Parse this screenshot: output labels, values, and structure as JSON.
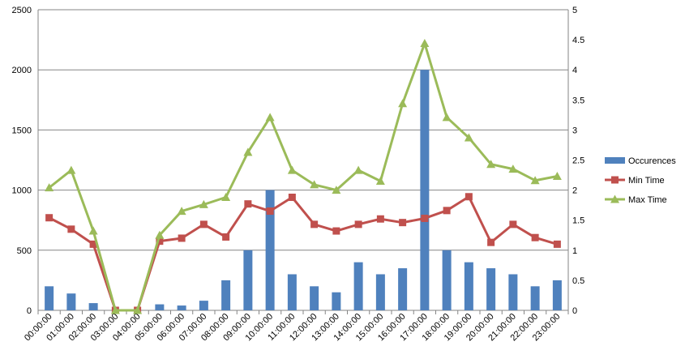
{
  "chart_data": {
    "type": "bar+line",
    "categories": [
      "00:00:00",
      "01:00:00",
      "02:00:00",
      "03:00:00",
      "04:00:00",
      "05:00:00",
      "06:00:00",
      "07:00:00",
      "08:00:00",
      "09:00:00",
      "10:00:00",
      "11:00:00",
      "12:00:00",
      "13:00:00",
      "14:00:00",
      "15:00:00",
      "16:00:00",
      "17:00:00",
      "18:00:00",
      "19:00:00",
      "20:00:00",
      "21:00:00",
      "22:00:00",
      "23:00:00"
    ],
    "y_left": {
      "min": 0,
      "max": 2500,
      "ticks": [
        "0",
        "500",
        "1000",
        "1500",
        "2000",
        "2500"
      ]
    },
    "y_right": {
      "min": 0,
      "max": 5,
      "ticks": [
        "0",
        "0.5",
        "1",
        "1.5",
        "2",
        "2.5",
        "3",
        "3.5",
        "4",
        "4.5",
        "5"
      ]
    },
    "grid": true,
    "legend_position": "right",
    "series": [
      {
        "name": "Occurences",
        "kind": "bar",
        "axis": "left",
        "color": "#4F81BD",
        "values": [
          200,
          140,
          60,
          0,
          0,
          50,
          40,
          80,
          250,
          500,
          1000,
          300,
          200,
          150,
          400,
          300,
          350,
          2000,
          500,
          400,
          350,
          300,
          200,
          250
        ]
      },
      {
        "name": "Min Time",
        "kind": "line",
        "axis": "right",
        "color": "#C0504D",
        "marker": "square",
        "values": [
          1.54,
          1.35,
          1.1,
          0,
          0,
          1.15,
          1.2,
          1.43,
          1.22,
          1.77,
          1.65,
          1.88,
          1.43,
          1.32,
          1.43,
          1.52,
          1.46,
          1.53,
          1.66,
          1.89,
          1.13,
          1.43,
          1.21,
          1.1
        ]
      },
      {
        "name": "Max Time",
        "kind": "line",
        "axis": "right",
        "color": "#9BBB59",
        "marker": "triangle",
        "values": [
          2.04,
          2.33,
          1.32,
          0,
          0,
          1.25,
          1.65,
          1.76,
          1.88,
          2.63,
          3.21,
          2.33,
          2.09,
          2.0,
          2.33,
          2.15,
          3.44,
          4.44,
          3.21,
          2.87,
          2.43,
          2.35,
          2.16,
          2.23
        ]
      }
    ]
  }
}
